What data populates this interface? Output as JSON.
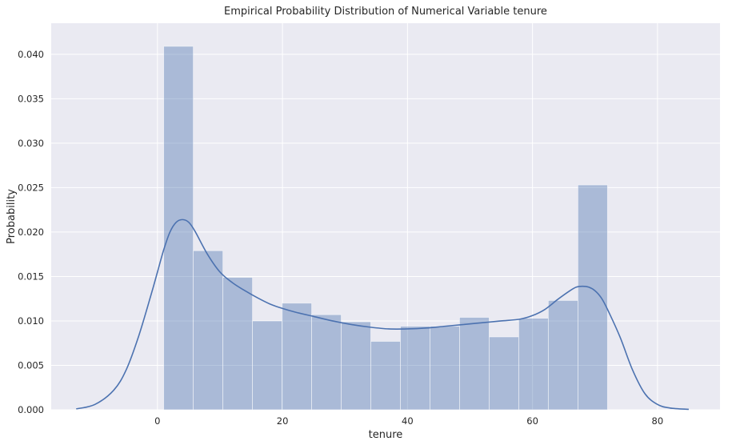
{
  "chart_data": {
    "type": "bar",
    "title": "Empirical Probability Distribution of Numerical Variable tenure",
    "xlabel": "tenure",
    "ylabel": "Probability",
    "xlim": [
      -17,
      90
    ],
    "ylim": [
      0,
      0.0435
    ],
    "grid": true,
    "x_ticks": [
      0,
      20,
      40,
      60,
      80
    ],
    "y_ticks": [
      0.0,
      0.005,
      0.01,
      0.015,
      0.02,
      0.025,
      0.03,
      0.035,
      0.04
    ],
    "y_tick_labels": [
      "0.000",
      "0.005",
      "0.010",
      "0.015",
      "0.020",
      "0.025",
      "0.030",
      "0.035",
      "0.040"
    ],
    "histogram": {
      "bin_edges": [
        1,
        5.73,
        10.47,
        15.2,
        19.93,
        24.67,
        29.4,
        34.13,
        38.87,
        43.6,
        48.33,
        53.07,
        57.8,
        62.53,
        67.27,
        72
      ],
      "values": [
        0.0409,
        0.0179,
        0.0149,
        0.01,
        0.012,
        0.0107,
        0.0099,
        0.0077,
        0.0094,
        0.0094,
        0.0104,
        0.0082,
        0.0103,
        0.0123,
        0.0253
      ],
      "color": "#4c72b0",
      "opacity": 0.4
    },
    "kde": {
      "x": [
        -13,
        -10,
        -7,
        -5,
        -3,
        -1,
        0,
        1,
        2,
        3,
        4,
        5,
        6,
        8,
        10,
        12,
        14,
        16,
        18,
        20,
        22,
        25,
        28,
        31,
        34,
        37,
        40,
        43,
        46,
        49,
        52,
        55,
        58,
        60,
        62,
        64,
        66,
        67,
        68,
        69,
        70,
        71,
        72,
        74,
        76,
        78,
        80,
        82,
        85
      ],
      "y": [
        0.0001,
        0.0006,
        0.0022,
        0.0045,
        0.0083,
        0.013,
        0.0155,
        0.018,
        0.02,
        0.0211,
        0.0214,
        0.0211,
        0.0201,
        0.0175,
        0.0155,
        0.0143,
        0.0134,
        0.0126,
        0.0119,
        0.0114,
        0.011,
        0.0105,
        0.01,
        0.0096,
        0.0093,
        0.0091,
        0.0091,
        0.0092,
        0.0094,
        0.0096,
        0.0098,
        0.01,
        0.0102,
        0.0106,
        0.0113,
        0.0124,
        0.0134,
        0.0138,
        0.0139,
        0.0138,
        0.0134,
        0.0126,
        0.0113,
        0.0082,
        0.0045,
        0.0018,
        0.0006,
        0.0002,
        5e-05
      ],
      "color": "#4c72b0"
    }
  },
  "style": {
    "plot_bg": "#eaeaf2",
    "grid_color": "#ffffff",
    "bar_color": "#4c72b0",
    "line_color": "#4c72b0",
    "text_color": "#262626"
  }
}
